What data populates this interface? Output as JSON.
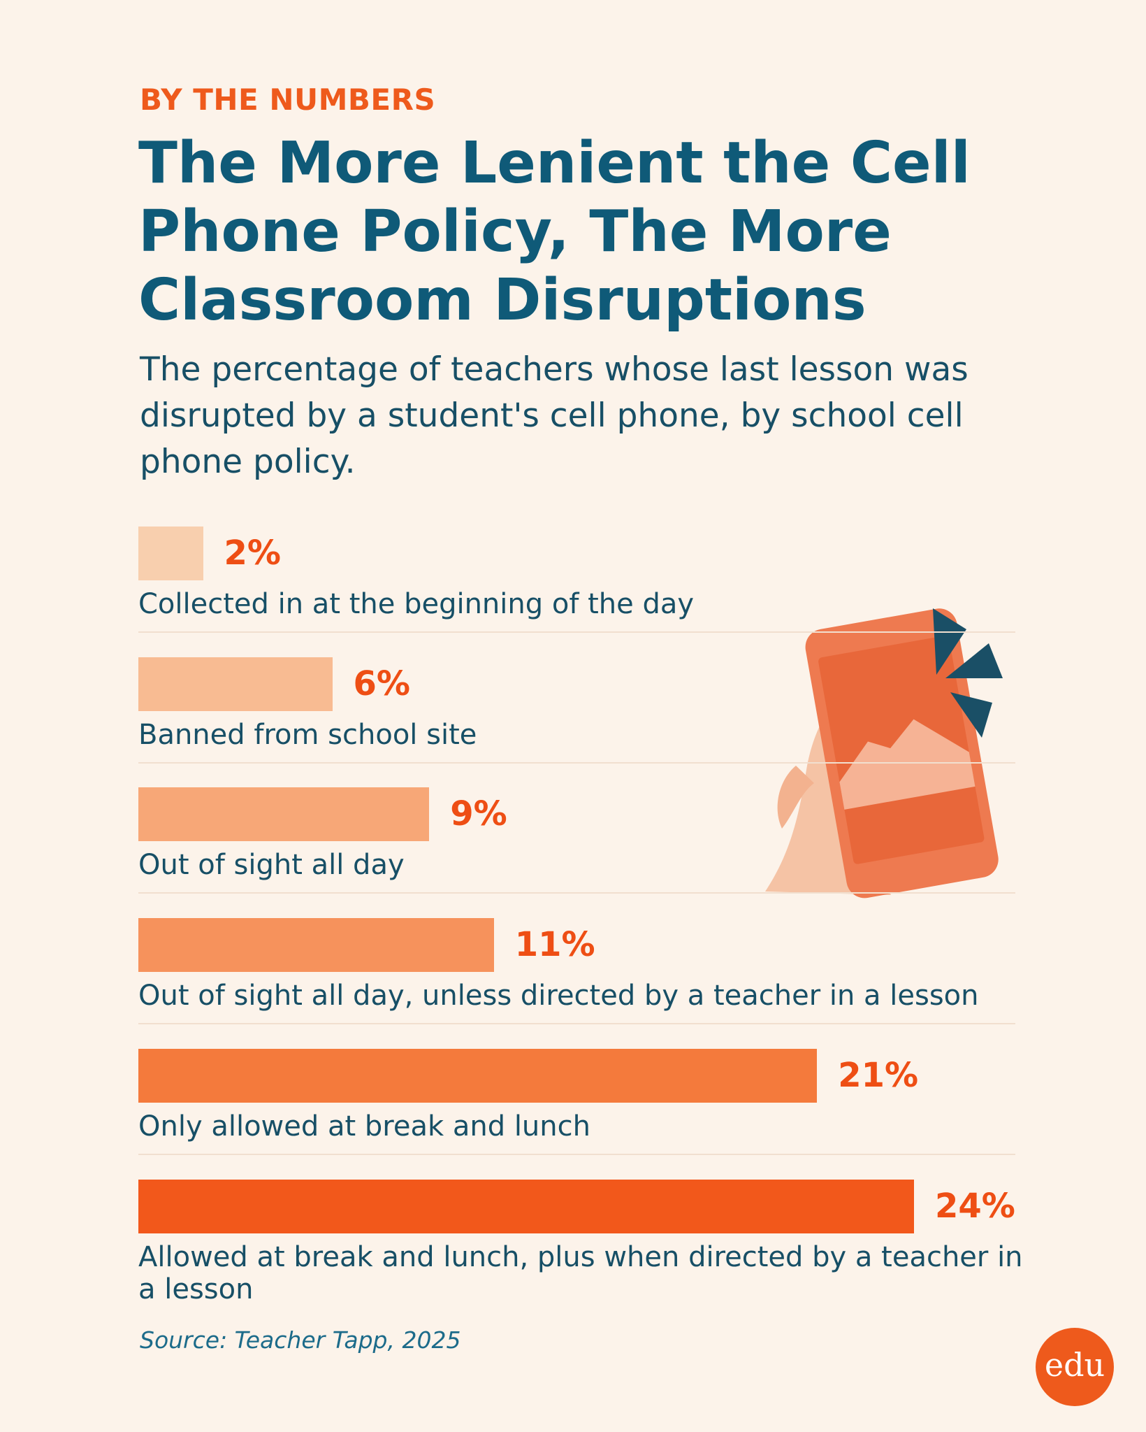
{
  "chart_data": {
    "type": "bar",
    "orientation": "horizontal",
    "kicker": "BY THE NUMBERS",
    "title": "The More Lenient the Cell Phone Policy, The More Classroom Disruptions",
    "subtitle": "The percentage of teachers whose last lesson was disrupted by a student's cell phone, by school cell phone policy.",
    "categories": [
      "Collected in at the beginning of the day",
      "Banned from school site",
      "Out of sight all day",
      "Out of sight all day, unless directed by a teacher in a lesson",
      "Only allowed at break and lunch",
      "Allowed at break and lunch, plus when directed by a teacher in a lesson"
    ],
    "values": [
      2,
      6,
      9,
      11,
      21,
      24
    ],
    "value_labels": [
      "2%",
      "6%",
      "9%",
      "11%",
      "21%",
      "24%"
    ],
    "colors": [
      "#f8cfae",
      "#f8bb92",
      "#f7a777",
      "#f6925c",
      "#f47a3c",
      "#f2581b"
    ],
    "source": "Source: Teacher Tapp, 2025",
    "logo": "edu"
  }
}
